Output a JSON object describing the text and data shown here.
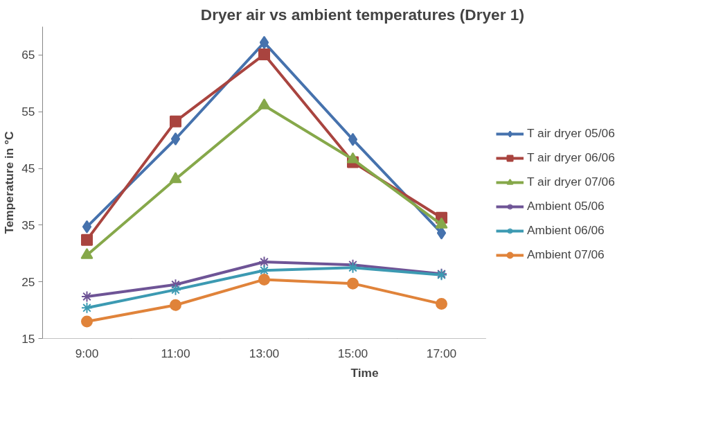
{
  "chart_data": {
    "type": "line",
    "title": "Dryer air  vs ambient temperatures (Dryer 1)",
    "xlabel": "Time",
    "ylabel": "Temperature in °C",
    "categories": [
      "9:00",
      "11:00",
      "13:00",
      "15:00",
      "17:00"
    ],
    "ylim": [
      15,
      70
    ],
    "yticks": [
      15,
      25,
      35,
      45,
      55,
      65
    ],
    "grid": false,
    "legend": "right",
    "series": [
      {
        "name": "T air dryer 05/06",
        "color": "#4672ad",
        "marker": "diamond",
        "values": [
          34.7,
          50.2,
          67.2,
          50.1,
          33.6
        ]
      },
      {
        "name": "T air dryer 06/06",
        "color": "#a9443f",
        "marker": "square",
        "values": [
          32.4,
          53.3,
          65.1,
          46.1,
          36.3
        ]
      },
      {
        "name": "T air dryer 07/06",
        "color": "#86a84a",
        "marker": "triangle",
        "values": [
          29.7,
          43.1,
          56.1,
          46.6,
          35.1
        ]
      },
      {
        "name": "Ambient 05/06",
        "color": "#6e5496",
        "marker": "cross",
        "values": [
          22.4,
          24.5,
          28.5,
          28.0,
          26.4
        ]
      },
      {
        "name": "Ambient 06/06",
        "color": "#3c9ab2",
        "marker": "cross",
        "values": [
          20.4,
          23.6,
          27.0,
          27.5,
          26.2
        ]
      },
      {
        "name": "Ambient 07/06",
        "color": "#e0833a",
        "marker": "circle",
        "values": [
          18.0,
          20.9,
          25.4,
          24.7,
          21.1
        ]
      }
    ]
  }
}
